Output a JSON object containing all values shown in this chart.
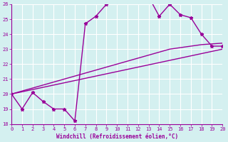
{
  "x": [
    0,
    1,
    2,
    3,
    4,
    5,
    6,
    7,
    8,
    9,
    10,
    11,
    12,
    13,
    14,
    15,
    16,
    17,
    18,
    19,
    20
  ],
  "y_curve": [
    20.0,
    19.0,
    20.1,
    19.5,
    19.0,
    19.0,
    18.2,
    24.7,
    25.2,
    26.0,
    26.2,
    26.2,
    26.3,
    26.5,
    25.2,
    26.0,
    25.3,
    25.1,
    24.0,
    23.2,
    23.2
  ],
  "y_line1": [
    20.0,
    20.15,
    20.3,
    20.45,
    20.6,
    20.75,
    20.9,
    21.05,
    21.2,
    21.35,
    21.5,
    21.65,
    21.8,
    21.95,
    22.1,
    22.25,
    22.4,
    22.55,
    22.7,
    22.85,
    23.0
  ],
  "y_line2": [
    20.0,
    20.2,
    20.4,
    20.6,
    20.8,
    21.0,
    21.2,
    21.4,
    21.6,
    21.8,
    22.0,
    22.2,
    22.4,
    22.6,
    22.8,
    23.0,
    23.1,
    23.2,
    23.3,
    23.35,
    23.4
  ],
  "ylim": [
    18,
    26
  ],
  "xlim": [
    0,
    20
  ],
  "yticks": [
    18,
    19,
    20,
    21,
    22,
    23,
    24,
    25,
    26
  ],
  "xticks": [
    0,
    1,
    2,
    3,
    4,
    5,
    6,
    7,
    8,
    9,
    10,
    11,
    12,
    13,
    14,
    15,
    16,
    17,
    18,
    19,
    20
  ],
  "xlabel": "Windchill (Refroidissement éolien,°C)",
  "curve_color": "#990099",
  "line_color": "#990099",
  "bg_color": "#d4f0f0",
  "grid_color": "#ffffff",
  "text_color": "#990099",
  "marker": "*",
  "marker_size": 3.5,
  "line_width": 1.0,
  "fig_width": 3.2,
  "fig_height": 2.0,
  "dpi": 100
}
